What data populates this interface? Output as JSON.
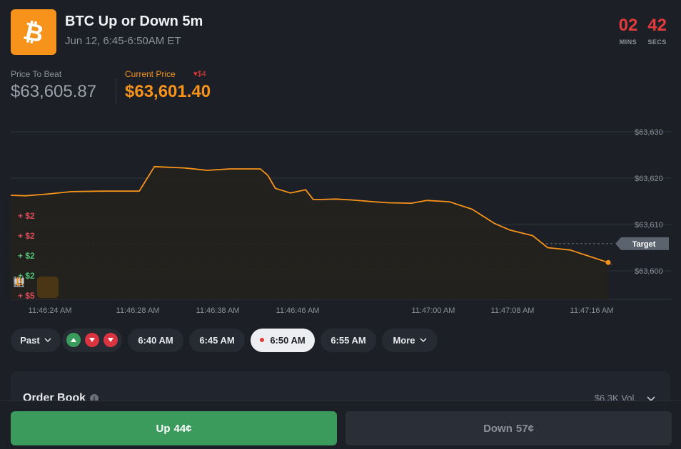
{
  "market": {
    "title": "BTC Up or Down 5m",
    "subtitle": "Jun 12, 6:45-6:50AM ET",
    "timer": {
      "mins": "02",
      "mins_label": "MINS",
      "secs": "42",
      "secs_label": "SECS"
    }
  },
  "prices": {
    "price_to_beat_label": "Price To Beat",
    "price_to_beat": "$63,605.87",
    "current_price_label": "Current Price",
    "current_delta": "$4",
    "current_price": "$63,601.40"
  },
  "chart_data": {
    "type": "line",
    "y_ticks": [
      "$63,630",
      "$63,620",
      "$63,610",
      "$63,600"
    ],
    "ylim": [
      63598,
      63632
    ],
    "x_ticks": [
      "11:46:24 AM",
      "11:46:28 AM",
      "11:46:38 AM",
      "11:46:46 AM",
      "11:47:00 AM",
      "11:47:08 AM",
      "11:47:16 AM"
    ],
    "target_label": "Target",
    "target_value": 63605.87,
    "current_value": 63601.4,
    "series": [
      {
        "x": [
          0,
          2,
          5,
          8,
          12,
          17,
          19,
          23,
          26,
          29,
          33,
          34,
          35,
          37,
          39,
          40,
          41,
          43,
          45,
          48,
          50,
          53,
          55,
          58,
          61,
          64,
          66,
          69,
          71,
          74,
          76,
          79
        ],
        "y": [
          63616.3,
          63616.2,
          63616.6,
          63617.1,
          63617.2,
          63617.2,
          63622.5,
          63622.2,
          63621.7,
          63622.0,
          63622.0,
          63620.6,
          63617.8,
          63616.8,
          63617.5,
          63615.4,
          63615.4,
          63615.5,
          63615.3,
          63614.9,
          63614.7,
          63614.6,
          63615.2,
          63614.9,
          63613.3,
          63610.2,
          63608.8,
          63607.6,
          63605.0,
          63604.5,
          63603.4,
          63601.8
        ]
      }
    ],
    "delta_markers": [
      {
        "text": "+ $2",
        "color": "#d94b5a"
      },
      {
        "text": "+ $2",
        "color": "#d94b5a"
      },
      {
        "text": "+ $2",
        "color": "#4fbf73"
      },
      {
        "text": "+ $2",
        "color": "#4fbf73"
      },
      {
        "text": "+ $5",
        "color": "#d94b5a"
      }
    ],
    "line_color": "#f7931a",
    "grid": true
  },
  "controls": {
    "past_label": "Past",
    "times": [
      "6:40 AM",
      "6:45 AM",
      "6:50 AM",
      "6:55 AM"
    ],
    "active_time": "6:50 AM",
    "more_label": "More"
  },
  "orderbook": {
    "title": "Order Book",
    "volume": "$6.3K Vol."
  },
  "actions": {
    "up_label": "Up",
    "up_price": "44¢",
    "down_label": "Down",
    "down_price": "57¢"
  },
  "colors": {
    "accent": "#f7931a",
    "up": "#3a9b5c",
    "down_red": "#e23b3b"
  }
}
